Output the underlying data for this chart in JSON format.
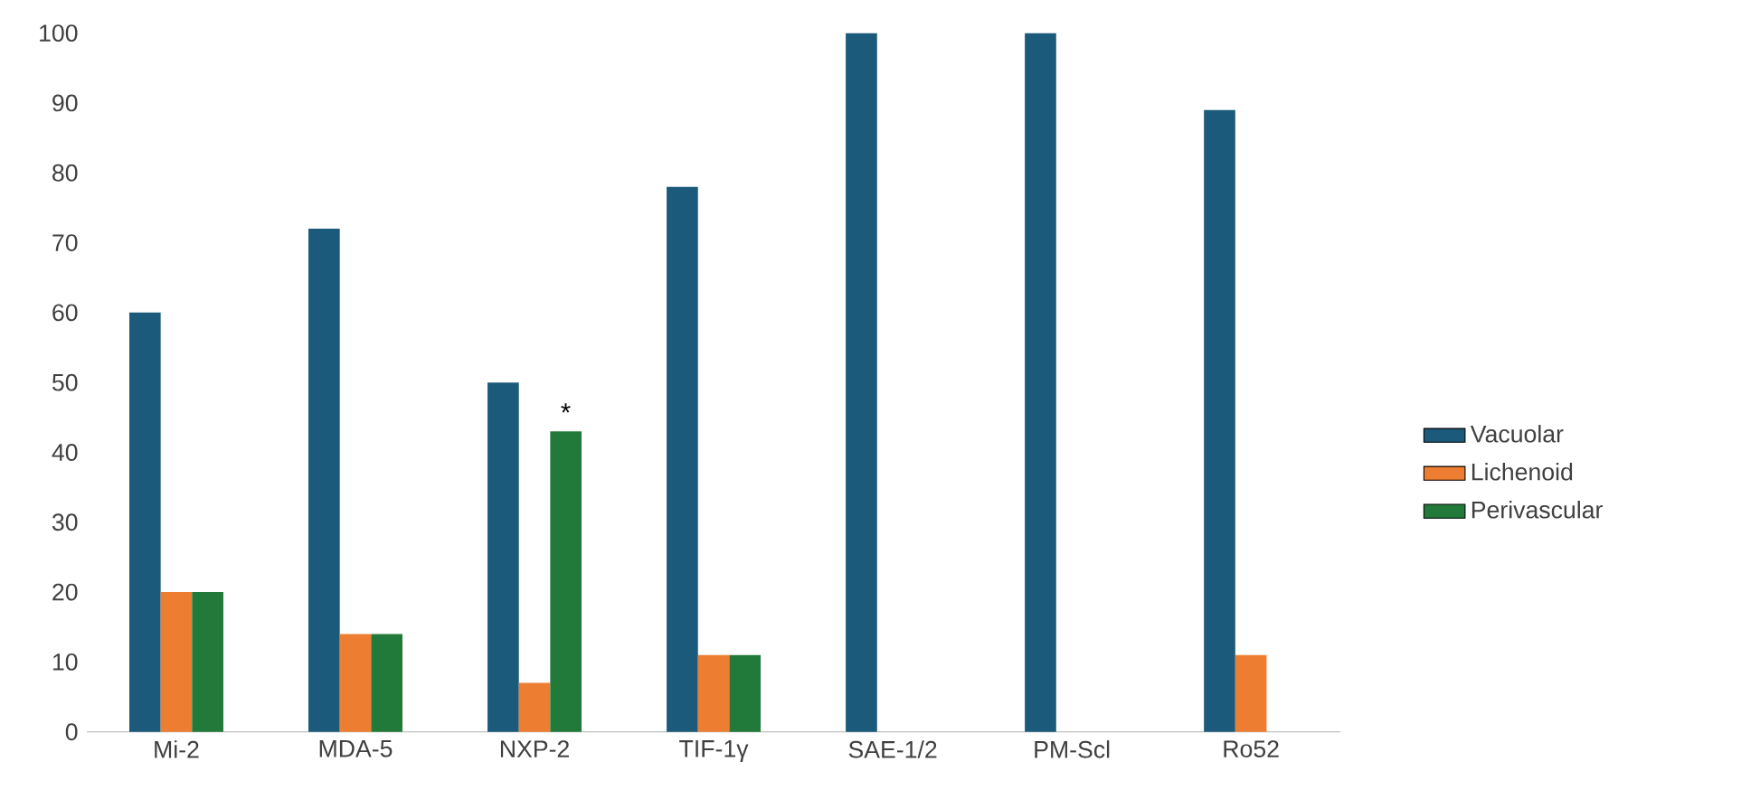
{
  "chart_data": {
    "type": "bar",
    "categories": [
      "Mi-2",
      "MDA-5",
      "NXP-2",
      "TIF-1γ",
      "SAE-1/2",
      "PM-Scl",
      "Ro52"
    ],
    "series": [
      {
        "name": "Vacuolar",
        "color": "#1b5a7a",
        "values": [
          60,
          72,
          50,
          78,
          100,
          100,
          89
        ]
      },
      {
        "name": "Lichenoid",
        "color": "#ed7d31",
        "values": [
          20,
          14,
          7,
          11,
          null,
          null,
          11
        ]
      },
      {
        "name": "Perivascular",
        "color": "#227a3a",
        "values": [
          20,
          14,
          43,
          11,
          null,
          null,
          null
        ]
      }
    ],
    "ylim": [
      0,
      100
    ],
    "yticks": [
      0,
      10,
      20,
      30,
      40,
      50,
      60,
      70,
      80,
      90,
      100
    ],
    "legend": "right",
    "grid": false,
    "annotations": [
      "*"
    ]
  }
}
